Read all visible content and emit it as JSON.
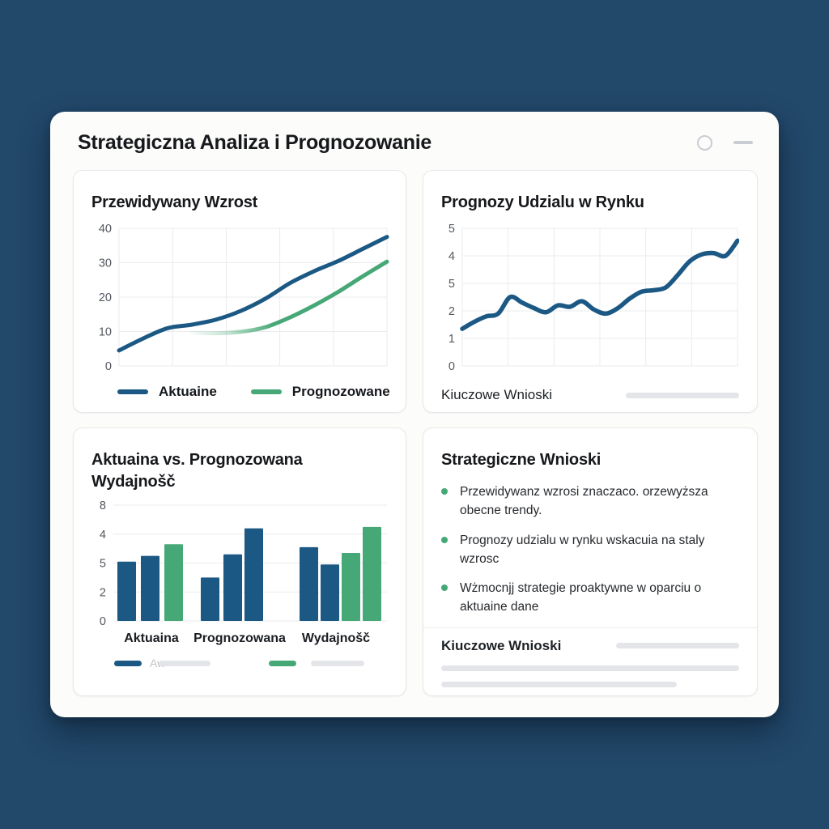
{
  "colors": {
    "page_bg": "#22486a",
    "card_bg": "#fcfcfb",
    "panel_bg": "#ffffff",
    "panel_border": "#e8e8e6",
    "blue": "#1b5884",
    "green": "#46a876",
    "grid": "#e9ebed",
    "skeleton": "#e3e5e8",
    "tick_text": "#54585e",
    "title_text": "#16181b",
    "control_gray": "#c9cdd2"
  },
  "window": {
    "title": "Strategiczna Analiza i Prognozowanie",
    "controls": [
      {
        "icon": "circle-icon"
      },
      {
        "icon": "minimize-icon"
      }
    ]
  },
  "panels": {
    "growth": {
      "title": "Przewidywany Wzrost"
    },
    "market": {
      "title": "Prognozy Udzialu w Rynku",
      "footer_label": "Kiuczowe Wnioski"
    },
    "performance": {
      "title": "Aktuaina vs. Prognozowana Wydajnošč",
      "legend_partial_text": "Aw"
    },
    "insights": {
      "title": "Strategiczne Wnioski",
      "bullets": [
        "Przewidywanz wzrosi znaczaco. orzewyższa obecne trendy.",
        "Prognozy udzialu w rynku wskacuia na staly wzrosc",
        "Wżmocnjj strategie proaktywne w oparciu o aktuaine dane"
      ],
      "footer_label": "Kiuczowe Wnioski"
    }
  },
  "chart_data": [
    {
      "id": "growth",
      "type": "line",
      "title": "Przewidywany Wzrost",
      "ylim": [
        0,
        40
      ],
      "yticks": [
        "40",
        "30",
        "20",
        "10",
        "0"
      ],
      "grid": true,
      "legend_position": "bottom",
      "series": [
        {
          "name": "Aktuaine",
          "color_key": "blue",
          "offset": 0,
          "values": [
            4.5,
            8,
            11,
            12,
            13.5,
            16,
            19.5,
            24,
            27.5,
            30.5,
            34,
            37.5
          ]
        },
        {
          "name": "Prognozowane",
          "color_key": "green",
          "offset": 0.27,
          "fade_in": true,
          "values": [
            9.7,
            9.5,
            9.9,
            11.2,
            14,
            17.5,
            21.5,
            26,
            30.3
          ]
        }
      ]
    },
    {
      "id": "market",
      "type": "line",
      "title": "Prognozy Udzialu w Rynku",
      "ylim": [
        0,
        5
      ],
      "yticks": [
        "5",
        "4",
        "5",
        "2",
        "1",
        "0"
      ],
      "grid": true,
      "series": [
        {
          "color_key": "blue",
          "offset": 0,
          "values": [
            1.35,
            1.6,
            1.8,
            1.9,
            2.5,
            2.3,
            2.1,
            1.95,
            2.2,
            2.15,
            2.35,
            2.05,
            1.9,
            2.1,
            2.45,
            2.7,
            2.75,
            2.85,
            3.3,
            3.8,
            4.05,
            4.1,
            4.0,
            4.55
          ]
        }
      ]
    },
    {
      "id": "performance",
      "type": "bar",
      "title": "Aktuaina vs. Prognozowana Wydajnošč",
      "ylim": [
        0,
        8
      ],
      "yticks": [
        "8",
        "4",
        "5",
        "2",
        "0"
      ],
      "categories": [
        "Aktuaina",
        "Prognozowana",
        "Wydajnošč"
      ],
      "groups": [
        {
          "label": "Aktuaina",
          "bars": [
            {
              "value": 4.1,
              "color_key": "blue"
            },
            {
              "value": 4.5,
              "color_key": "blue"
            },
            {
              "value": 5.3,
              "color_key": "green"
            }
          ]
        },
        {
          "label": "Prognozowana",
          "bars": [
            {
              "value": 3.0,
              "color_key": "blue"
            },
            {
              "value": 4.6,
              "color_key": "blue"
            },
            {
              "value": 6.4,
              "color_key": "blue"
            }
          ]
        },
        {
          "label": "Wydajnošč",
          "bars": [
            {
              "value": 5.1,
              "color_key": "blue"
            },
            {
              "value": 3.9,
              "color_key": "blue"
            },
            {
              "value": 4.7,
              "color_key": "green"
            },
            {
              "value": 6.5,
              "color_key": "green"
            }
          ]
        }
      ]
    }
  ]
}
